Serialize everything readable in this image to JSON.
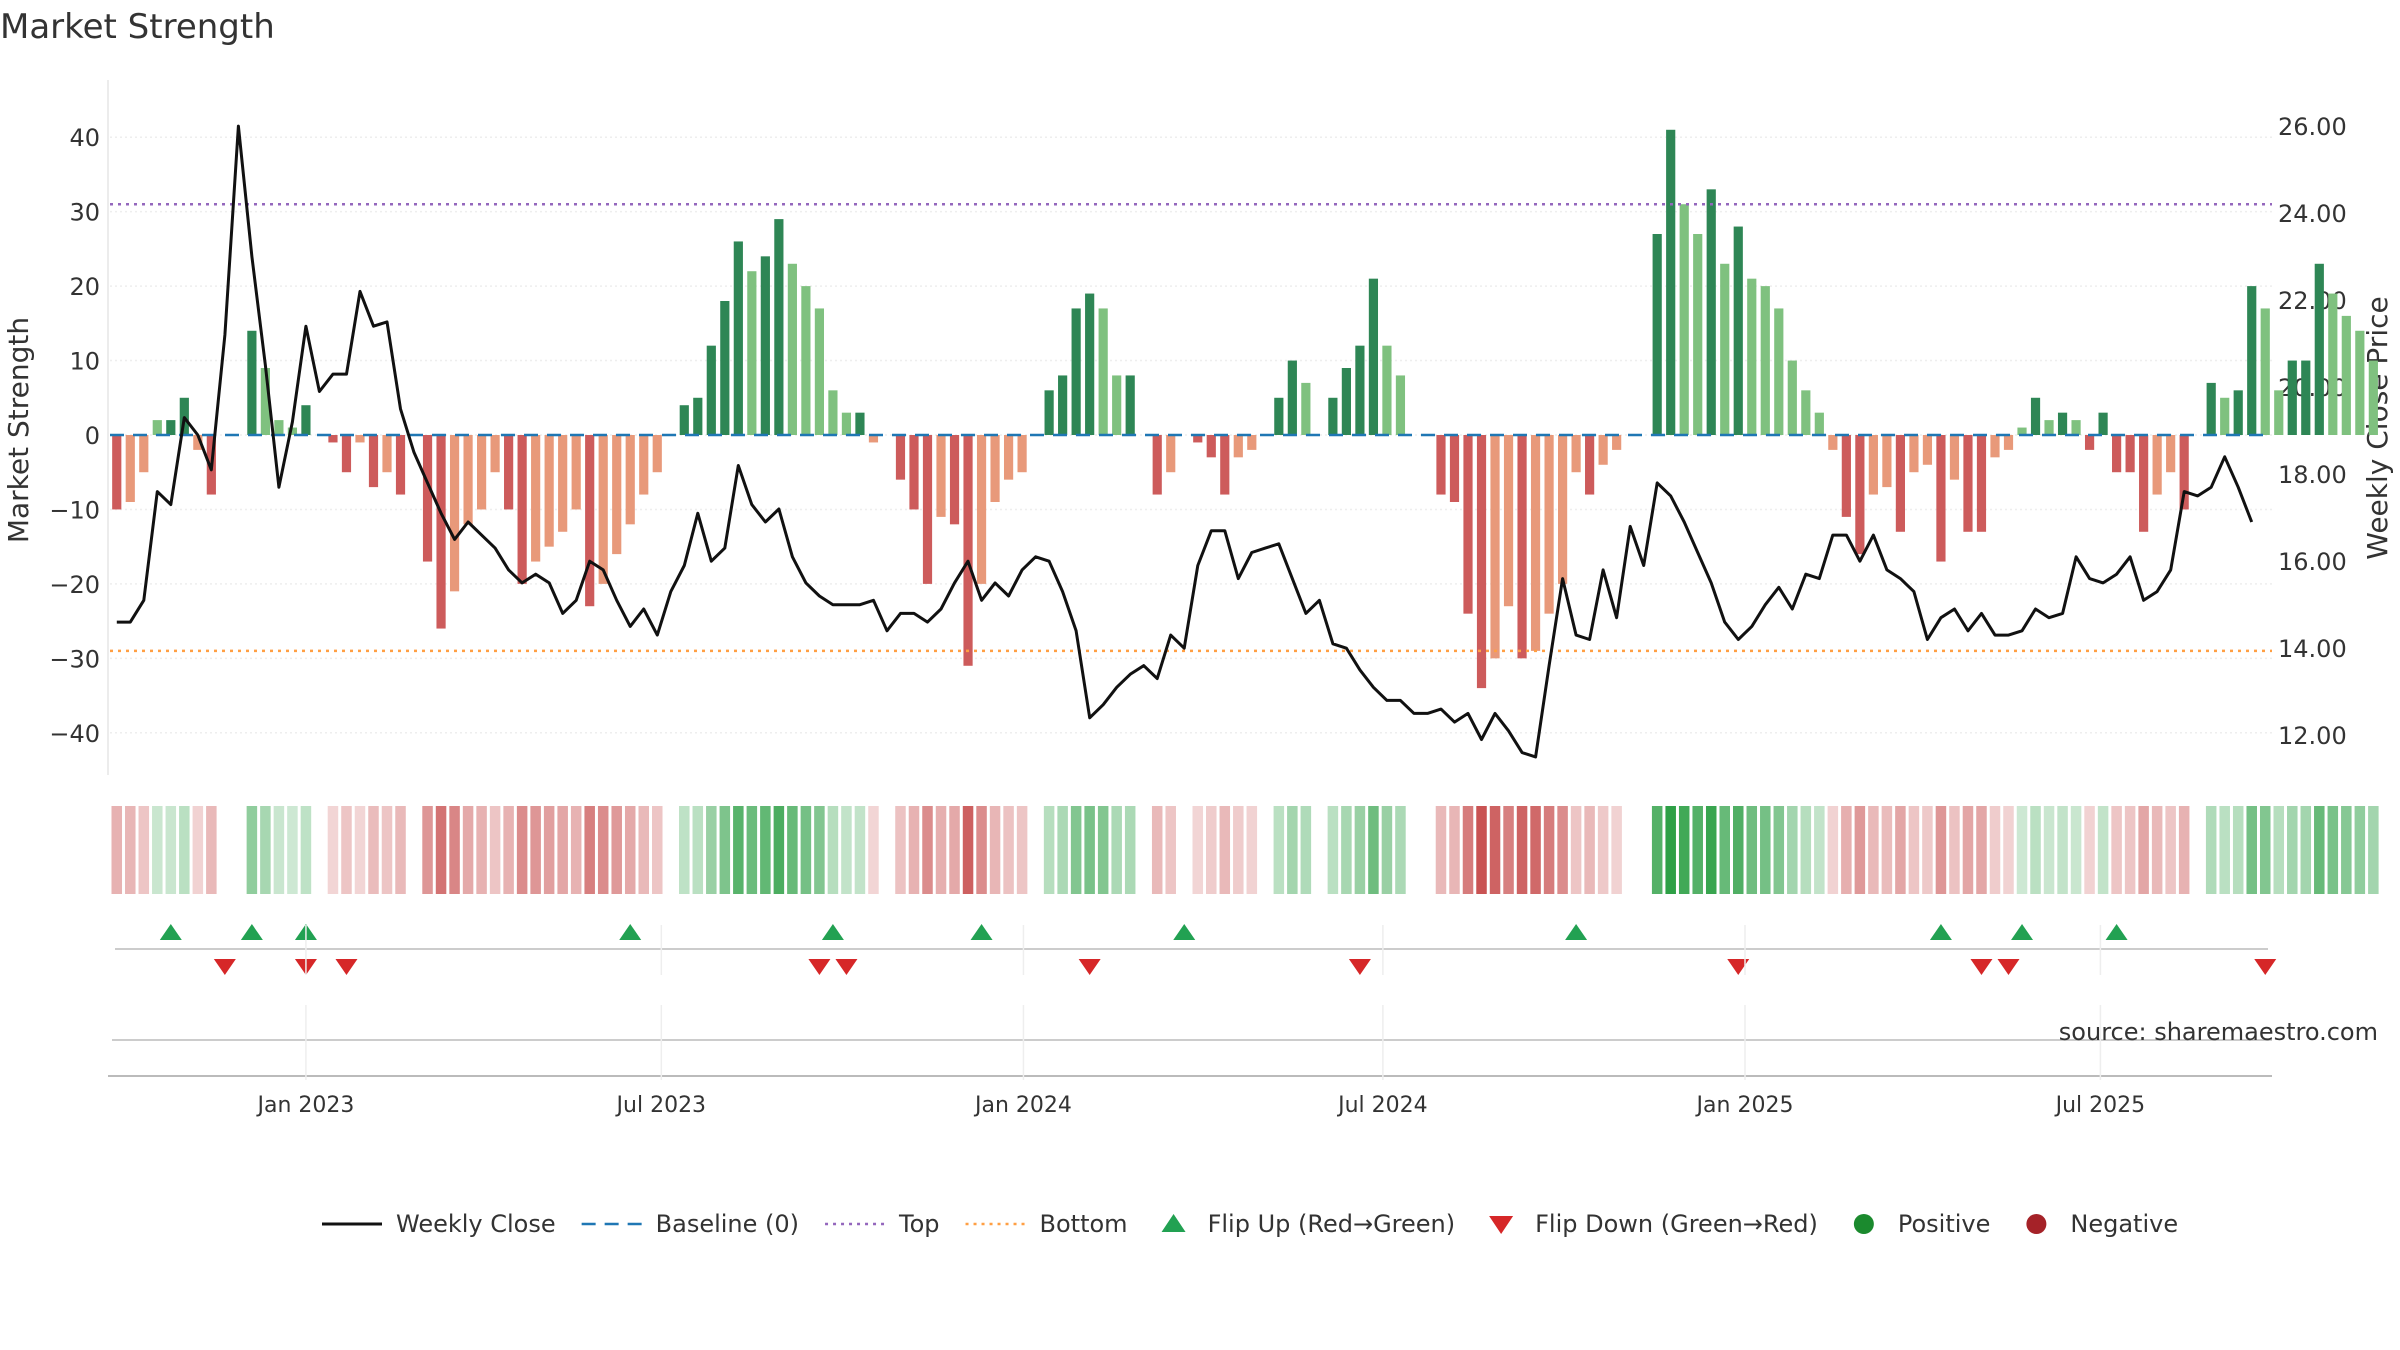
{
  "chart_data": {
    "type": "bar",
    "title": "Market Strength",
    "ylabel_left": "Market Strength",
    "ylabel_right": "Weekly Close Price",
    "source": "source: sharemaestro.com",
    "left_ylim": [
      -45,
      45
    ],
    "left_ticks": [
      40,
      30,
      20,
      10,
      0,
      -10,
      -20,
      -30,
      -40
    ],
    "left_tick_labels": [
      "40",
      "30",
      "20",
      "10",
      "0",
      "−10",
      "−20",
      "−30",
      "−40"
    ],
    "right_ylim": [
      11.2,
      26.6
    ],
    "right_ticks": [
      26,
      24,
      22,
      20,
      18,
      16,
      14,
      12
    ],
    "right_tick_labels": [
      "26.00",
      "24.00",
      "22.00",
      "20.00",
      "18.00",
      "16.00",
      "14.00",
      "12.00"
    ],
    "top_line": 31,
    "bottom_line": -29,
    "baseline": 0,
    "x_range": [
      0,
      160
    ],
    "x_ticks": [
      {
        "label": "Jan 2023",
        "week": 14.5
      },
      {
        "label": "Jul 2023",
        "week": 40.8
      },
      {
        "label": "Jan 2024",
        "week": 67.6
      },
      {
        "label": "Jul 2024",
        "week": 94.2
      },
      {
        "label": "Jan 2025",
        "week": 121.0
      },
      {
        "label": "Jul 2025",
        "week": 147.3
      }
    ],
    "strength": [
      -10,
      -9,
      -5,
      2,
      2,
      5,
      -2,
      -8,
      0,
      0,
      14,
      9,
      2,
      1,
      4,
      0,
      -1,
      -5,
      -1,
      -7,
      -5,
      -8,
      0,
      -17,
      -26,
      -21,
      -12,
      -10,
      -5,
      -10,
      -20,
      -17,
      -15,
      -13,
      -10,
      -23,
      -20,
      -16,
      -12,
      -8,
      -5,
      0,
      4,
      5,
      12,
      18,
      26,
      22,
      24,
      29,
      23,
      20,
      17,
      6,
      3,
      3,
      -1,
      0,
      -6,
      -10,
      -20,
      -11,
      -12,
      -31,
      -20,
      -9,
      -6,
      -5,
      0,
      6,
      8,
      17,
      19,
      17,
      8,
      8,
      0,
      -8,
      -5,
      0,
      -1,
      -3,
      -8,
      -3,
      -2,
      0,
      5,
      10,
      7,
      0,
      5,
      9,
      12,
      21,
      12,
      8,
      0,
      0,
      -8,
      -9,
      -24,
      -34,
      -30,
      -23,
      -30,
      -29,
      -24,
      -20,
      -5,
      -8,
      -4,
      -2,
      0,
      0,
      27,
      41,
      31,
      27,
      33,
      23,
      28,
      21,
      20,
      17,
      10,
      6,
      3,
      -2,
      -11,
      -16,
      -8,
      -7,
      -13,
      -5,
      -4,
      -17,
      -6,
      -13,
      -13,
      -3,
      -2,
      1,
      5,
      2,
      3,
      2,
      -2,
      3,
      -5,
      -5,
      -13,
      -8,
      -5,
      -10,
      0,
      7,
      5,
      6,
      20,
      17,
      6,
      10,
      10,
      23,
      19,
      16,
      14,
      10
    ],
    "close": [
      14.6,
      14.6,
      15.1,
      17.6,
      17.3,
      19.3,
      18.9,
      18.1,
      21.2,
      26.0,
      23.0,
      20.5,
      17.7,
      19.2,
      21.4,
      19.9,
      20.3,
      20.3,
      22.2,
      21.4,
      21.5,
      19.5,
      18.5,
      17.8,
      17.1,
      16.5,
      16.9,
      16.6,
      16.3,
      15.8,
      15.5,
      15.7,
      15.5,
      14.8,
      15.1,
      16.0,
      15.8,
      15.1,
      14.5,
      14.9,
      14.3,
      15.3,
      15.9,
      17.1,
      16.0,
      16.3,
      18.2,
      17.3,
      16.9,
      17.2,
      16.1,
      15.5,
      15.2,
      15.0,
      15.0,
      15.0,
      15.1,
      14.4,
      14.8,
      14.8,
      14.6,
      14.9,
      15.5,
      16.0,
      15.1,
      15.5,
      15.2,
      15.8,
      16.1,
      16.0,
      15.3,
      14.4,
      12.4,
      12.7,
      13.1,
      13.4,
      13.6,
      13.3,
      14.3,
      14.0,
      15.9,
      16.7,
      16.7,
      15.6,
      16.2,
      16.3,
      16.4,
      15.6,
      14.8,
      15.1,
      14.1,
      14.0,
      13.5,
      13.1,
      12.8,
      12.8,
      12.5,
      12.5,
      12.6,
      12.3,
      12.5,
      11.9,
      12.5,
      12.1,
      11.6,
      11.5,
      13.6,
      15.6,
      14.3,
      14.2,
      15.8,
      14.7,
      16.8,
      15.9,
      17.8,
      17.5,
      16.9,
      16.2,
      15.5,
      14.6,
      14.2,
      14.5,
      15.0,
      15.4,
      14.9,
      15.7,
      15.6,
      16.6,
      16.6,
      16.0,
      16.6,
      15.8,
      15.6,
      15.3,
      14.2,
      14.7,
      14.9,
      14.4,
      14.8,
      14.3,
      14.3,
      14.4,
      14.9,
      14.7,
      14.8,
      16.1,
      15.6,
      15.5,
      15.7,
      16.1,
      15.1,
      15.3,
      15.8,
      17.6,
      17.5,
      17.7,
      18.4,
      17.7,
      16.9
    ],
    "flip_up": [
      4,
      10,
      14,
      38,
      53,
      64,
      79,
      108,
      135,
      141,
      148
    ],
    "flip_down": [
      8,
      14,
      17,
      52,
      54,
      72,
      92,
      120,
      138,
      140,
      159
    ],
    "legend": [
      {
        "label": "Weekly Close",
        "type": "line",
        "color": "#111111"
      },
      {
        "label": "Baseline (0)",
        "type": "dash",
        "color": "#1f77b4"
      },
      {
        "label": "Top",
        "type": "dot",
        "color": "#9467bd"
      },
      {
        "label": "Bottom",
        "type": "dot",
        "color": "#ff9f43"
      },
      {
        "label": "Flip Up (Red→Green)",
        "type": "tri-up",
        "color": "#22a152"
      },
      {
        "label": "Flip Down (Green→Red)",
        "type": "tri-down",
        "color": "#d62728"
      },
      {
        "label": "Positive",
        "type": "circle",
        "color": "#1b8a2e"
      },
      {
        "label": "Negative",
        "type": "circle",
        "color": "#a52228"
      }
    ]
  },
  "colors": {
    "pos_strong": "#2e8655",
    "pos_weak": "#7fc17f",
    "neg_strong": "#cd5b5b",
    "neg_weak": "#e8997a",
    "close_line": "#111111",
    "baseline": "#1f77b4",
    "top": "#9467bd",
    "bottom": "#ff9f43",
    "flip_up": "#22a152",
    "flip_down": "#d62728"
  }
}
